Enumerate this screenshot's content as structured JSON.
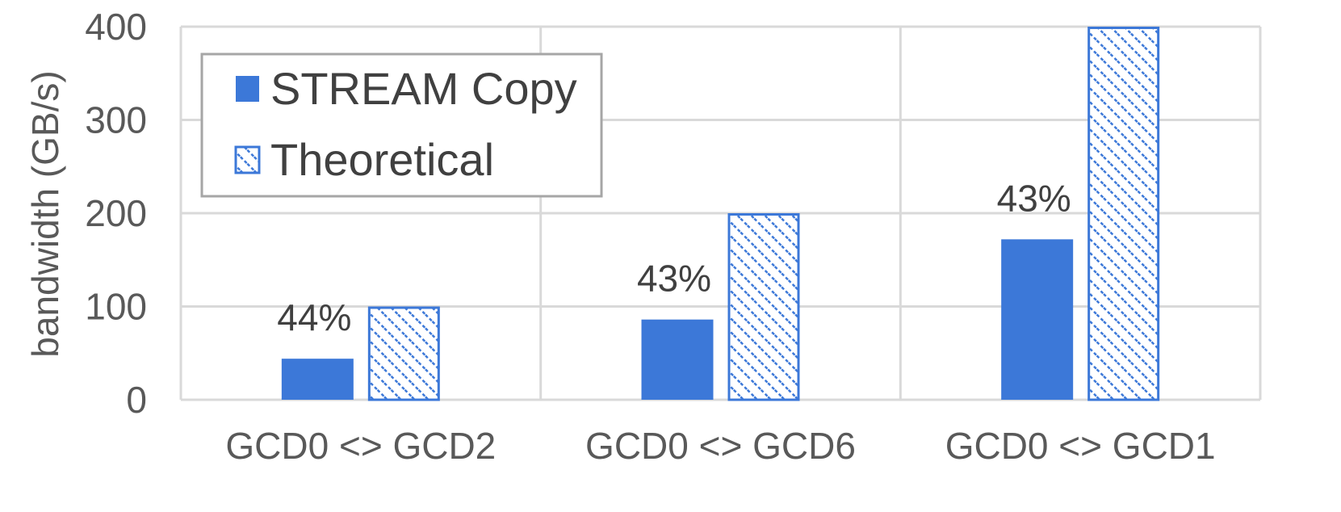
{
  "chart_data": {
    "type": "bar",
    "categories": [
      "GCD0 <> GCD2",
      "GCD0 <> GCD6",
      "GCD0 <> GCD1"
    ],
    "series": [
      {
        "name": "STREAM Copy",
        "values": [
          44,
          86,
          172
        ],
        "style": "solid",
        "color": "#3c78d8"
      },
      {
        "name": "Theoretical",
        "values": [
          100,
          200,
          400
        ],
        "style": "hatched",
        "color": "#3c78d8"
      }
    ],
    "data_labels": [
      "44%",
      "43%",
      "43%"
    ],
    "ylabel": "bandwidth (GB/s)",
    "xlabel": "",
    "ylim": [
      0,
      400
    ],
    "yticks": [
      0,
      100,
      200,
      300,
      400
    ],
    "grid": true,
    "legend_position": "top-left"
  }
}
